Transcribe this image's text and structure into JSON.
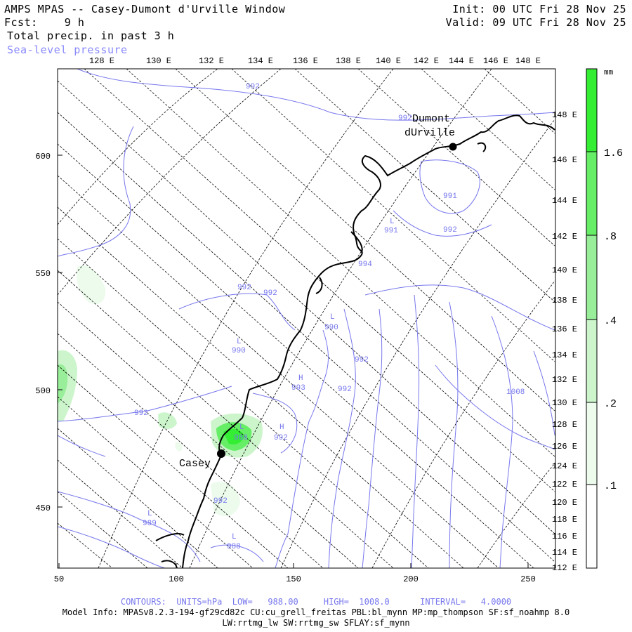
{
  "header": {
    "title": "AMPS MPAS -- Casey-Dumont d'Urville Window",
    "forecast": "Fcst:    9 h",
    "field": "Total precip. in past 3 h",
    "overlay": "Sea-level pressure",
    "init": "Init: 00 UTC Fri 28 Nov 25",
    "valid": "Valid: 09 UTC Fri 28 Nov 25"
  },
  "axes": {
    "top_longitudes": [
      "128 E",
      "130 E",
      "132 E",
      "134 E",
      "136 E",
      "138 E",
      "140 E",
      "142 E",
      "144 E",
      "146 E",
      "148 E"
    ],
    "right_longitudes": [
      "148 E",
      "146 E",
      "144 E",
      "142 E",
      "140 E",
      "138 E",
      "136 E",
      "134 E",
      "132 E",
      "130 E",
      "128 E",
      "126 E",
      "124 E",
      "122 E",
      "120 E",
      "118 E",
      "116 E",
      "114 E",
      "112 E"
    ],
    "x_ticks": [
      "50",
      "100",
      "150",
      "200",
      "250"
    ],
    "y_ticks": [
      "600",
      "550",
      "500",
      "450"
    ]
  },
  "colorbar": {
    "unit": "mm",
    "labels": [
      "1.6",
      ".8",
      ".4",
      ".2",
      ".1"
    ],
    "colors": [
      "#33ee33",
      "#66ee66",
      "#99ee99",
      "#ccf5cc",
      "#ecfbec"
    ]
  },
  "places": [
    {
      "name_line1": "Dumont",
      "name_line2": "dUrville"
    },
    {
      "name_line1": "Casey",
      "name_line2": ""
    }
  ],
  "contour_labels": {
    "c1": "992",
    "c2": "992",
    "c3": "991",
    "c4": "991",
    "c5": "992",
    "c6": "992",
    "c7": "992",
    "c8": "990",
    "c9": "990",
    "c10": "992",
    "c11": "993",
    "c12": "992",
    "c13": "992",
    "c14": "988",
    "c15": "992",
    "c16": "992",
    "c17": "989",
    "c18": "988",
    "c19": "1008",
    "c20": "994",
    "L1": "L",
    "L2": "L",
    "L3": "L",
    "L4": "L",
    "L5": "L",
    "L6": "L",
    "H1": "H",
    "H2": "H"
  },
  "footer": {
    "contours": "CONTOURS:  UNITS=hPa  LOW=   988.00     HIGH=  1008.0      INTERVAL=   4.0000",
    "model_info": "Model Info: MPASv8.2.3-194-gf29cd82c CU:cu_grell_freitas PBL:bl_mynn MP:mp_thompson SF:sf_noahmp 8.0",
    "model_info2": "LW:rrtmg_lw SW:rrtmg_sw SFLAY:sf_mynn"
  }
}
